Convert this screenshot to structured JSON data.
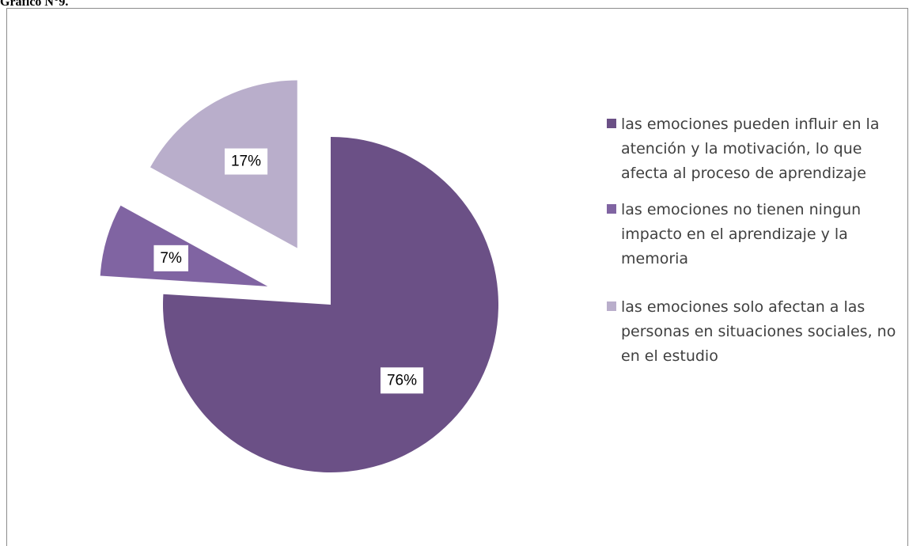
{
  "caption": "Gráfico N°9.",
  "chart_data": {
    "type": "pie",
    "title": "",
    "slices": [
      {
        "name": "las emociones pueden influir en la atención y la motivación, lo que afecta al proceso de aprendizaje",
        "value": 76,
        "label": "76%",
        "color": "#6b5086",
        "exploded": false
      },
      {
        "name": "las emociones no tienen ningun impacto en el aprendizaje y la memoria",
        "value": 7,
        "label": "7%",
        "color": "#8064a2",
        "exploded": true
      },
      {
        "name": "las emociones solo afectan a las personas en situaciones sociales, no en el estudio",
        "value": 17,
        "label": "17%",
        "color": "#b9aecb",
        "exploded": true
      }
    ],
    "legend_position": "right"
  }
}
